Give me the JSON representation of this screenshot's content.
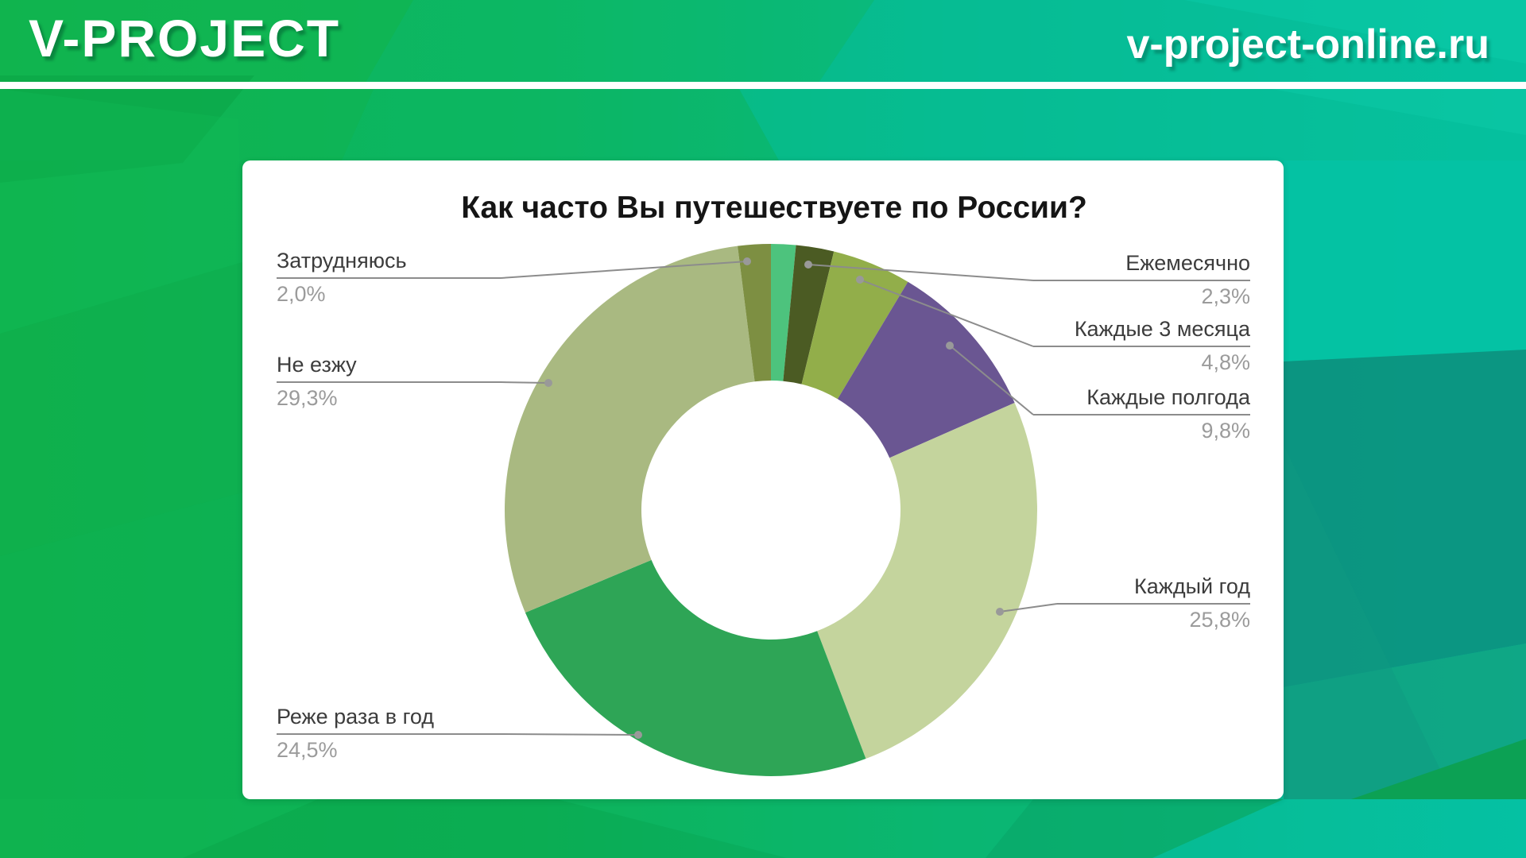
{
  "brand": {
    "logo": "V-PROJECT",
    "site": "v-project-online.ru",
    "accent_green": "#0db14e",
    "accent_teal": "#04c2a4"
  },
  "chart_card": {
    "background_color": "#ffffff",
    "title": "Как часто Вы путешествуете по России?"
  },
  "chart_data": {
    "type": "pie",
    "donut": true,
    "title": "Как часто Вы путешествуете по России?",
    "start_angle_deg": 0,
    "direction": "clockwise",
    "callout_line_color": "#8c8c8c",
    "label_color": "#3c3c3c",
    "value_color": "#9b9b9b",
    "slices": [
      {
        "label": "",
        "value": 1.5,
        "value_text": "",
        "color": "#4dc37d"
      },
      {
        "label": "Ежемесячно",
        "value": 2.3,
        "value_text": "2,3%",
        "color": "#4b5b23"
      },
      {
        "label": "Каждые 3 месяца",
        "value": 4.8,
        "value_text": "4,8%",
        "color": "#92ae4a"
      },
      {
        "label": "Каждые полгода",
        "value": 9.8,
        "value_text": "9,8%",
        "color": "#6a5692"
      },
      {
        "label": "Каждый год",
        "value": 25.8,
        "value_text": "25,8%",
        "color": "#c4d49d"
      },
      {
        "label": "Реже раза в год",
        "value": 24.5,
        "value_text": "24,5%",
        "color": "#2ea556"
      },
      {
        "label": "Не езжу",
        "value": 29.3,
        "value_text": "29,3%",
        "color": "#a9b981"
      },
      {
        "label": "Затрудняюсь",
        "value": 2.0,
        "value_text": "2,0%",
        "color": "#7d8f42"
      }
    ]
  }
}
